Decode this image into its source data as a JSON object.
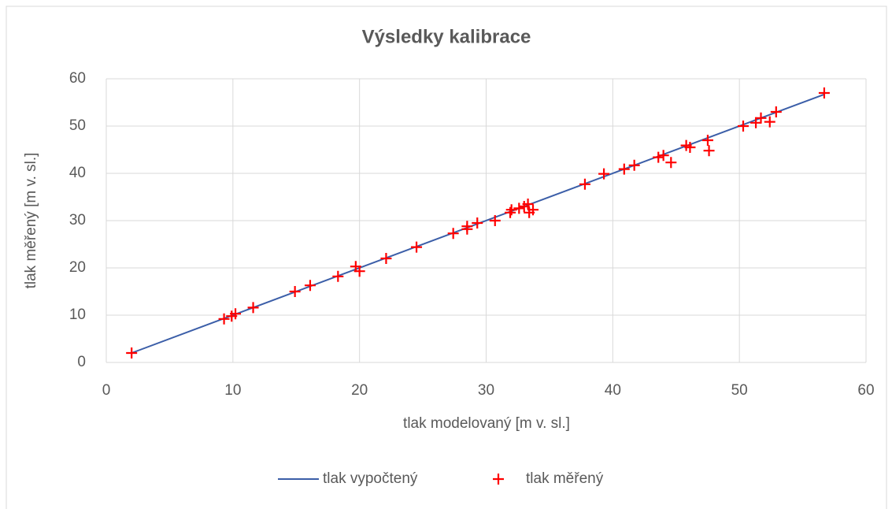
{
  "chart_data": {
    "type": "scatter",
    "title": "Výsledky kalibrace",
    "xlabel": "tlak modelovaný [m v. sl.]",
    "ylabel": "tlak měřený [m v. sl.]",
    "xlim": [
      0,
      60
    ],
    "xticks": [
      0,
      10,
      20,
      30,
      40,
      50,
      60
    ],
    "ylim": [
      0,
      60
    ],
    "yticks": [
      0,
      10,
      20,
      30,
      40,
      50,
      60
    ],
    "grid": true,
    "legend": "bottom",
    "series": [
      {
        "name": "tlak vypočtený",
        "color": "#3b5ea8",
        "type": "line",
        "x": [
          2.0,
          56.7
        ],
        "values": [
          2.0,
          56.7
        ]
      },
      {
        "name": "tlak měřený",
        "color": "#ff0000",
        "type": "scatter",
        "x": [
          2.0,
          9.3,
          9.9,
          10.2,
          11.6,
          14.9,
          16.1,
          18.3,
          19.7,
          20.0,
          22.1,
          24.5,
          27.4,
          28.5,
          28.5,
          29.3,
          30.7,
          31.9,
          32.0,
          32.6,
          33.0,
          33.3,
          33.4,
          33.7,
          37.8,
          39.3,
          40.9,
          41.7,
          43.6,
          44.0,
          44.6,
          45.8,
          46.1,
          47.5,
          47.6,
          50.3,
          51.3,
          51.7,
          52.4,
          52.9,
          56.7
        ],
        "values": [
          2.0,
          9.2,
          9.8,
          10.3,
          11.6,
          15.0,
          16.3,
          18.2,
          20.3,
          19.3,
          22.0,
          24.4,
          27.3,
          28.8,
          28.2,
          29.5,
          30.0,
          31.7,
          32.3,
          32.6,
          33.0,
          33.5,
          31.7,
          32.3,
          37.7,
          39.9,
          40.9,
          41.7,
          43.4,
          43.8,
          42.3,
          45.9,
          45.5,
          47.0,
          44.8,
          50.0,
          50.7,
          51.7,
          50.9,
          53.0,
          57.0
        ]
      }
    ]
  }
}
